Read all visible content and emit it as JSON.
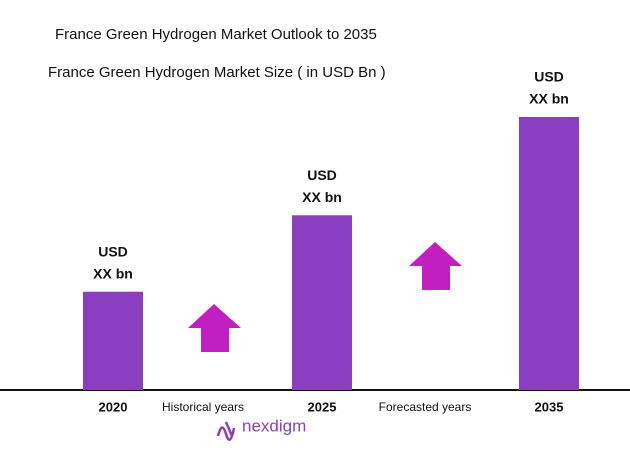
{
  "chart_data": {
    "type": "bar",
    "title": "France Green Hydrogen Market Outlook to 2035",
    "subtitle": "France Green Hydrogen Market Size ( in USD Bn )",
    "categories": [
      "2020",
      "2025",
      "2035"
    ],
    "values": [
      36,
      64,
      100
    ],
    "bar_labels": [
      [
        "USD",
        "XX bn"
      ],
      [
        "USD",
        "XX bn"
      ],
      [
        "USD",
        "XX bn"
      ]
    ],
    "color": "#8a3fc0",
    "ylim": [
      0,
      100
    ],
    "annotations": [
      "Historical years",
      "Forecasted years"
    ],
    "logo": "nexdigm"
  }
}
